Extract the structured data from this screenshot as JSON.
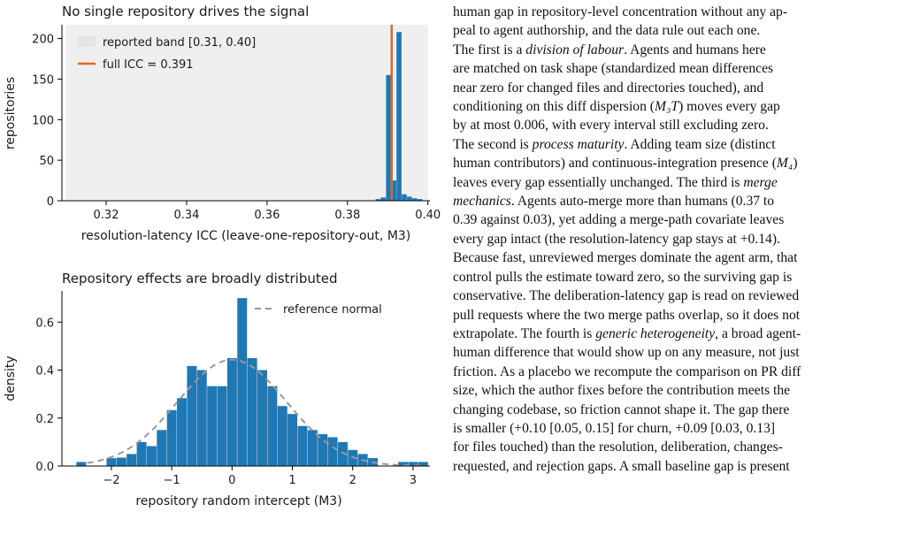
{
  "figure": {
    "chart_data": [
      {
        "type": "bar",
        "title": "No single repository drives the signal",
        "xlabel": "resolution-latency ICC (leave-one-repository-out, M3)",
        "ylabel": "repositories",
        "xlim": [
          0.309,
          0.4005
        ],
        "ylim": [
          0,
          217
        ],
        "xticks": [
          "0.32",
          "0.34",
          "0.36",
          "0.38",
          "0.40"
        ],
        "xtick_values": [
          0.32,
          0.34,
          0.36,
          0.38,
          0.4
        ],
        "yticks": [
          "0",
          "50",
          "100",
          "150",
          "200"
        ],
        "ytick_values": [
          0,
          50,
          100,
          150,
          200
        ],
        "band": {
          "x0": 0.31,
          "x1": 0.4,
          "label": "reported band [0.31, 0.40]",
          "color": "#efefef"
        },
        "vline": {
          "x": 0.391,
          "label": "full ICC = 0.391",
          "color": "#e8661a"
        },
        "bar_color": "#1f77b4",
        "bins": [
          {
            "x0": 0.387,
            "x1": 0.3883,
            "count": 2
          },
          {
            "x0": 0.3883,
            "x1": 0.3896,
            "count": 4
          },
          {
            "x0": 0.3896,
            "x1": 0.3909,
            "count": 155
          },
          {
            "x0": 0.3909,
            "x1": 0.3922,
            "count": 25
          },
          {
            "x0": 0.3922,
            "x1": 0.3935,
            "count": 208
          },
          {
            "x0": 0.3935,
            "x1": 0.3948,
            "count": 8
          },
          {
            "x0": 0.3948,
            "x1": 0.3961,
            "count": 5
          },
          {
            "x0": 0.3961,
            "x1": 0.3974,
            "count": 3
          },
          {
            "x0": 0.3974,
            "x1": 0.3987,
            "count": 2
          }
        ]
      },
      {
        "type": "bar",
        "title": "Repository effects are broadly distributed",
        "xlabel": "repository random intercept (M3)",
        "ylabel": "density",
        "xlim": [
          -2.82,
          3.28
        ],
        "ylim": [
          0,
          0.73
        ],
        "xticks": [
          "−2",
          "−1",
          "0",
          "1",
          "2",
          "3"
        ],
        "xtick_values": [
          -2,
          -1,
          0,
          1,
          2,
          3
        ],
        "yticks": [
          "0.0",
          "0.2",
          "0.4",
          "0.6"
        ],
        "ytick_values": [
          0,
          0.2,
          0.4,
          0.6
        ],
        "bar_color": "#1f77b4",
        "bin_start": -2.58,
        "bin_width": 0.1667,
        "values": [
          0.017,
          0,
          0,
          0.033,
          0.035,
          0.05,
          0.1,
          0.083,
          0.15,
          0.233,
          0.283,
          0.417,
          0.4,
          0.333,
          0.333,
          0.45,
          0.7,
          0.45,
          0.4,
          0.333,
          0.25,
          0.217,
          0.167,
          0.15,
          0.133,
          0.12,
          0.1,
          0.067,
          0.05,
          0.033,
          0,
          0,
          0.017,
          0.017,
          0.017
        ],
        "reference": {
          "label": "reference normal",
          "mu": 0,
          "sigma": 0.9,
          "color": "#999999"
        }
      }
    ]
  },
  "text": {
    "line1": "human gap in repository-level concentration without any ap-",
    "line2": "peal to agent authorship, and the data rule out each one.",
    "line3a": "The first is a ",
    "line3em": "division of labour",
    "line3b": ". Agents and humans here",
    "line4": "are matched on task shape (standardized mean differences",
    "line5": "near zero for changed files and directories touched), and",
    "line6a": "conditioning on this diff dispersion (",
    "m3t": "M₃T",
    "line6b": ") moves every gap",
    "line7": "by at most 0.006, with every interval still excluding zero.",
    "line8a": "The second is ",
    "line8em": "process maturity",
    "line8b": ". Adding team size (distinct",
    "line9a": "human contributors) and continuous-integration presence (",
    "m4": "M₄",
    "line9b": ")",
    "line10a": "leaves every gap essentially unchanged. The third is ",
    "line10em": "merge",
    "line11em": "mechanics",
    "line11b": ". Agents auto-merge more than humans (0.37 to",
    "line12": "0.39 against 0.03), yet adding a merge-path covariate leaves",
    "line13": "every gap intact (the resolution-latency gap stays at +0.14).",
    "line14": "Because fast, unreviewed merges dominate the agent arm, that",
    "line15": "control pulls the estimate toward zero, so the surviving gap is",
    "line16": "conservative. The deliberation-latency gap is read on reviewed",
    "line17": "pull requests where the two merge paths overlap, so it does not",
    "line18a": "extrapolate. The fourth is ",
    "line18em": "generic heterogeneity",
    "line18b": ", a broad agent-",
    "line19": "human difference that would show up on any measure, not just",
    "line20": "friction. As a placebo we recompute the comparison on PR diff",
    "line21": "size, which the author fixes before the contribution meets the",
    "line22": "changing codebase, so friction cannot shape it. The gap there",
    "line23": "is smaller (+0.10 [0.05, 0.15] for churn, +0.09 [0.03, 0.13]",
    "line24": "for files touched) than the resolution, deliberation, changes-",
    "line25": "requested, and rejection gaps. A small baseline gap is present"
  }
}
